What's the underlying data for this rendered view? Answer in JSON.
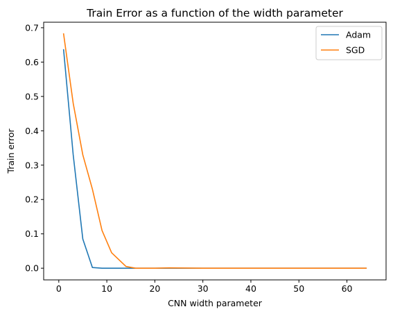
{
  "chart_data": {
    "type": "line",
    "title": "Train Error as a function of the width parameter",
    "xlabel": "CNN width parameter",
    "ylabel": "Train error",
    "xlim": [
      -3.15,
      68.15
    ],
    "ylim": [
      -0.034,
      0.716
    ],
    "xticks": [
      0,
      10,
      20,
      30,
      40,
      50,
      60
    ],
    "xtick_labels": [
      "0",
      "10",
      "20",
      "30",
      "40",
      "50",
      "60"
    ],
    "yticks": [
      0.0,
      0.1,
      0.2,
      0.3,
      0.4,
      0.5,
      0.6,
      0.7
    ],
    "ytick_labels": [
      "0.0",
      "0.1",
      "0.2",
      "0.3",
      "0.4",
      "0.5",
      "0.6",
      "0.7"
    ],
    "grid": false,
    "legend_position": "top-right",
    "x": [
      1,
      3,
      5,
      7,
      9,
      11,
      14,
      16,
      20,
      23,
      30,
      40,
      50,
      64
    ],
    "series": [
      {
        "name": "Adam",
        "color": "#1f77b4",
        "values": [
          0.636,
          0.33,
          0.085,
          0.002,
          0.0,
          0.0,
          0.0,
          0.0,
          0.0,
          0.0,
          0.0,
          0.0,
          0.0,
          0.0
        ]
      },
      {
        "name": "SGD",
        "color": "#ff7f0e",
        "values": [
          0.682,
          0.48,
          0.33,
          0.23,
          0.11,
          0.045,
          0.005,
          0.0,
          0.0,
          0.001,
          0.0,
          0.0,
          0.0,
          0.0
        ]
      }
    ]
  }
}
